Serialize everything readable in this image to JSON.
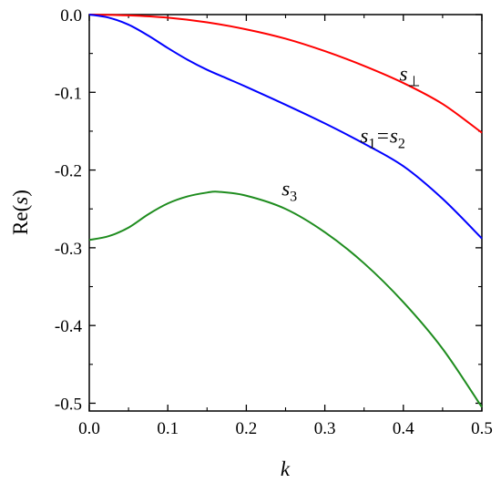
{
  "chart_data": {
    "type": "line",
    "xlabel": "k",
    "ylabel": "Re(s)",
    "xlim": [
      0.0,
      0.5
    ],
    "ylim": [
      -0.51,
      0.0
    ],
    "x_ticks": [
      "0.0",
      "0.1",
      "0.2",
      "0.3",
      "0.4",
      "0.5"
    ],
    "y_ticks": [
      "0.0",
      "-0.1",
      "-0.2",
      "-0.3",
      "-0.4",
      "-0.5"
    ],
    "grid": false,
    "series": [
      {
        "name": "s⊥",
        "color": "#ff0000",
        "x": [
          0.0,
          0.05,
          0.1,
          0.15,
          0.2,
          0.25,
          0.3,
          0.35,
          0.4,
          0.45,
          0.5
        ],
        "y": [
          0.0,
          -0.001,
          -0.004,
          -0.01,
          -0.019,
          -0.031,
          -0.047,
          -0.066,
          -0.088,
          -0.115,
          -0.152
        ]
      },
      {
        "name": "s1=s2",
        "color": "#0000ff",
        "x": [
          0.0,
          0.025,
          0.05,
          0.075,
          0.1,
          0.125,
          0.15,
          0.175,
          0.2,
          0.25,
          0.3,
          0.35,
          0.4,
          0.45,
          0.5
        ],
        "y": [
          0.0,
          -0.004,
          -0.013,
          -0.027,
          -0.043,
          -0.058,
          -0.071,
          -0.082,
          -0.093,
          -0.116,
          -0.14,
          -0.166,
          -0.195,
          -0.237,
          -0.288
        ]
      },
      {
        "name": "s3",
        "color": "#1e8c1e",
        "x": [
          0.0,
          0.025,
          0.05,
          0.075,
          0.1,
          0.125,
          0.15,
          0.165,
          0.2,
          0.25,
          0.3,
          0.35,
          0.4,
          0.45,
          0.5
        ],
        "y": [
          -0.29,
          -0.285,
          -0.274,
          -0.257,
          -0.243,
          -0.234,
          -0.229,
          -0.228,
          -0.233,
          -0.25,
          -0.28,
          -0.32,
          -0.37,
          -0.43,
          -0.505
        ]
      }
    ],
    "labels": [
      {
        "series": 0,
        "parts": [
          {
            "t": "s",
            "sub": ""
          },
          {
            "t": "",
            "sub": "⊥"
          }
        ],
        "x": 0.395,
        "y": -0.085
      },
      {
        "series": 1,
        "parts": [
          {
            "t": "s",
            "sub": "1"
          },
          {
            "t": "=s",
            "sub": "2"
          }
        ],
        "x": 0.345,
        "y": -0.165
      },
      {
        "series": 2,
        "parts": [
          {
            "t": "s",
            "sub": "3"
          }
        ],
        "x": 0.245,
        "y": -0.233
      }
    ]
  }
}
